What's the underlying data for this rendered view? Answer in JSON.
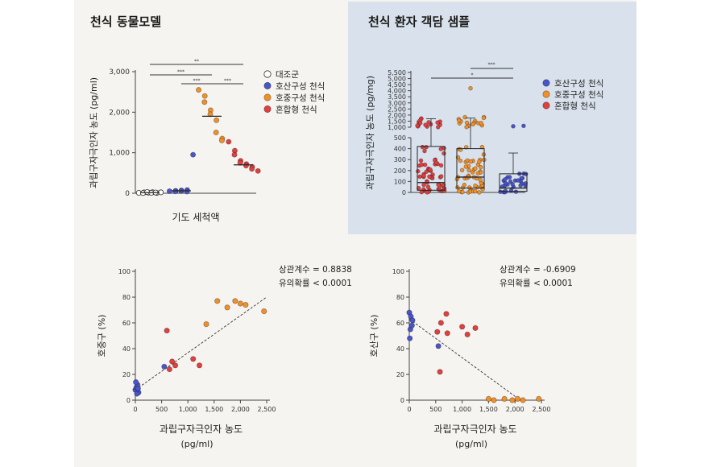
{
  "titles": {
    "left": "천식 동물모델",
    "right": "천식 환자 객담 샘플"
  },
  "colors": {
    "control": "#ffffff",
    "neutro": "#4a55c8",
    "eosino": "#f0902a",
    "mixed": "#e04040"
  },
  "chart_data": [
    {
      "id": "animal",
      "type": "scatter",
      "ylabel": "과립구자극인자 농도 (pg/ml)",
      "xlabel": "기도 세척액",
      "ylim": [
        0,
        3000
      ],
      "yticks": [
        "0",
        "1,000",
        "2,000",
        "3,000"
      ],
      "legend": {
        "position": "right",
        "entries": [
          "대조군",
          "호산구성 천식",
          "호중구성 천식",
          "혼합형 천식"
        ]
      },
      "significance": [
        "**",
        "***",
        "***",
        "***"
      ],
      "series": [
        {
          "key": "control",
          "values": [
            10,
            20,
            5,
            15,
            30,
            25,
            12,
            8,
            18,
            22
          ]
        },
        {
          "key": "neutro",
          "values": [
            50,
            60,
            45,
            70,
            55,
            80,
            40,
            950
          ]
        },
        {
          "key": "eosino",
          "values": [
            2550,
            2400,
            2250,
            2050,
            1950,
            1800,
            1500,
            1350,
            1300
          ]
        },
        {
          "key": "mixed",
          "values": [
            1270,
            1050,
            950,
            800,
            750,
            720,
            680,
            650,
            600,
            550
          ]
        }
      ],
      "medians": [
        15,
        60,
        1900,
        700
      ]
    },
    {
      "id": "sputum",
      "type": "box",
      "ylabel": "과립구자극인자 농도 (pg/mg)",
      "yticks_lower": [
        "0",
        "100",
        "200",
        "300",
        "400",
        "500"
      ],
      "yticks_upper": [
        "1,000",
        "1,500",
        "2,000",
        "2,500",
        "3,000",
        "3,500",
        "4,000",
        "4,500",
        "5,000",
        "5,500"
      ],
      "legend": {
        "position": "right",
        "entries": [
          "호산구성 천식",
          "호중구성 천식",
          "혼합형 천식"
        ]
      },
      "significance": [
        "*",
        "***"
      ],
      "groups": [
        {
          "key": "mixed",
          "q1": 20,
          "median": 90,
          "q3": 420,
          "min": 0,
          "max": 1700
        },
        {
          "key": "eosino",
          "q1": 40,
          "median": 140,
          "q3": 400,
          "min": 0,
          "max": 1750
        },
        {
          "key": "neutro",
          "q1": 10,
          "median": 40,
          "q3": 170,
          "min": 0,
          "max": 360
        }
      ]
    },
    {
      "id": "corr1",
      "type": "scatter",
      "ylabel": "호중구 (%)",
      "xlabel": "과립구자극인자 농도",
      "xunit": "(pg/ml)",
      "xlim": [
        0,
        2500
      ],
      "ylim": [
        0,
        100
      ],
      "xticks": [
        "0",
        "500",
        "1,000",
        "1,500",
        "2,000",
        "2,500"
      ],
      "yticks": [
        "0",
        "20",
        "40",
        "60",
        "80",
        "100"
      ],
      "stat_r": "상관계수 = 0.8838",
      "stat_p": "유의확률 < 0.0001",
      "trend": [
        [
          0,
          8
        ],
        [
          2500,
          80
        ]
      ],
      "points": [
        {
          "x": 0,
          "y": 8,
          "c": "neutro"
        },
        {
          "x": 20,
          "y": 10,
          "c": "neutro"
        },
        {
          "x": 40,
          "y": 12,
          "c": "neutro"
        },
        {
          "x": 10,
          "y": 14,
          "c": "neutro"
        },
        {
          "x": 60,
          "y": 6,
          "c": "neutro"
        },
        {
          "x": 30,
          "y": 5,
          "c": "neutro"
        },
        {
          "x": 50,
          "y": 9,
          "c": "neutro"
        },
        {
          "x": 550,
          "y": 26,
          "c": "neutro"
        },
        {
          "x": 600,
          "y": 54,
          "c": "mixed"
        },
        {
          "x": 700,
          "y": 30,
          "c": "mixed"
        },
        {
          "x": 650,
          "y": 24,
          "c": "mixed"
        },
        {
          "x": 760,
          "y": 27,
          "c": "mixed"
        },
        {
          "x": 1100,
          "y": 32,
          "c": "mixed"
        },
        {
          "x": 1220,
          "y": 27,
          "c": "mixed"
        },
        {
          "x": 1350,
          "y": 59,
          "c": "eosino"
        },
        {
          "x": 1560,
          "y": 77,
          "c": "eosino"
        },
        {
          "x": 1750,
          "y": 72,
          "c": "eosino"
        },
        {
          "x": 1900,
          "y": 77,
          "c": "eosino"
        },
        {
          "x": 2000,
          "y": 75,
          "c": "eosino"
        },
        {
          "x": 2100,
          "y": 74,
          "c": "eosino"
        },
        {
          "x": 2450,
          "y": 69,
          "c": "eosino"
        }
      ]
    },
    {
      "id": "corr2",
      "type": "scatter",
      "ylabel": "호산구 (%)",
      "xlabel": "과립구자극인자 농도",
      "xunit": "(pg/ml)",
      "xlim": [
        0,
        2500
      ],
      "ylim": [
        0,
        100
      ],
      "xticks": [
        "0",
        "500",
        "1,000",
        "1,500",
        "2,000",
        "2,500"
      ],
      "yticks": [
        "0",
        "20",
        "40",
        "60",
        "80",
        "100"
      ],
      "stat_r": "상관계수 = -0.6909",
      "stat_p": "유의확률 < 0.0001",
      "trend": [
        [
          0,
          63
        ],
        [
          2100,
          0
        ]
      ],
      "points": [
        {
          "x": 0,
          "y": 68,
          "c": "neutro"
        },
        {
          "x": 30,
          "y": 65,
          "c": "neutro"
        },
        {
          "x": 60,
          "y": 62,
          "c": "neutro"
        },
        {
          "x": 20,
          "y": 55,
          "c": "neutro"
        },
        {
          "x": 10,
          "y": 48,
          "c": "neutro"
        },
        {
          "x": 50,
          "y": 58,
          "c": "neutro"
        },
        {
          "x": 550,
          "y": 42,
          "c": "neutro"
        },
        {
          "x": 530,
          "y": 53,
          "c": "mixed"
        },
        {
          "x": 600,
          "y": 60,
          "c": "mixed"
        },
        {
          "x": 700,
          "y": 67,
          "c": "mixed"
        },
        {
          "x": 720,
          "y": 52,
          "c": "mixed"
        },
        {
          "x": 580,
          "y": 22,
          "c": "mixed"
        },
        {
          "x": 1000,
          "y": 57,
          "c": "mixed"
        },
        {
          "x": 1100,
          "y": 51,
          "c": "mixed"
        },
        {
          "x": 1250,
          "y": 56,
          "c": "mixed"
        },
        {
          "x": 1500,
          "y": 1,
          "c": "eosino"
        },
        {
          "x": 1600,
          "y": 0,
          "c": "eosino"
        },
        {
          "x": 1800,
          "y": 1,
          "c": "eosino"
        },
        {
          "x": 1950,
          "y": 0,
          "c": "eosino"
        },
        {
          "x": 2050,
          "y": 1,
          "c": "eosino"
        },
        {
          "x": 2150,
          "y": 0,
          "c": "eosino"
        },
        {
          "x": 2450,
          "y": 1,
          "c": "eosino"
        }
      ]
    }
  ]
}
